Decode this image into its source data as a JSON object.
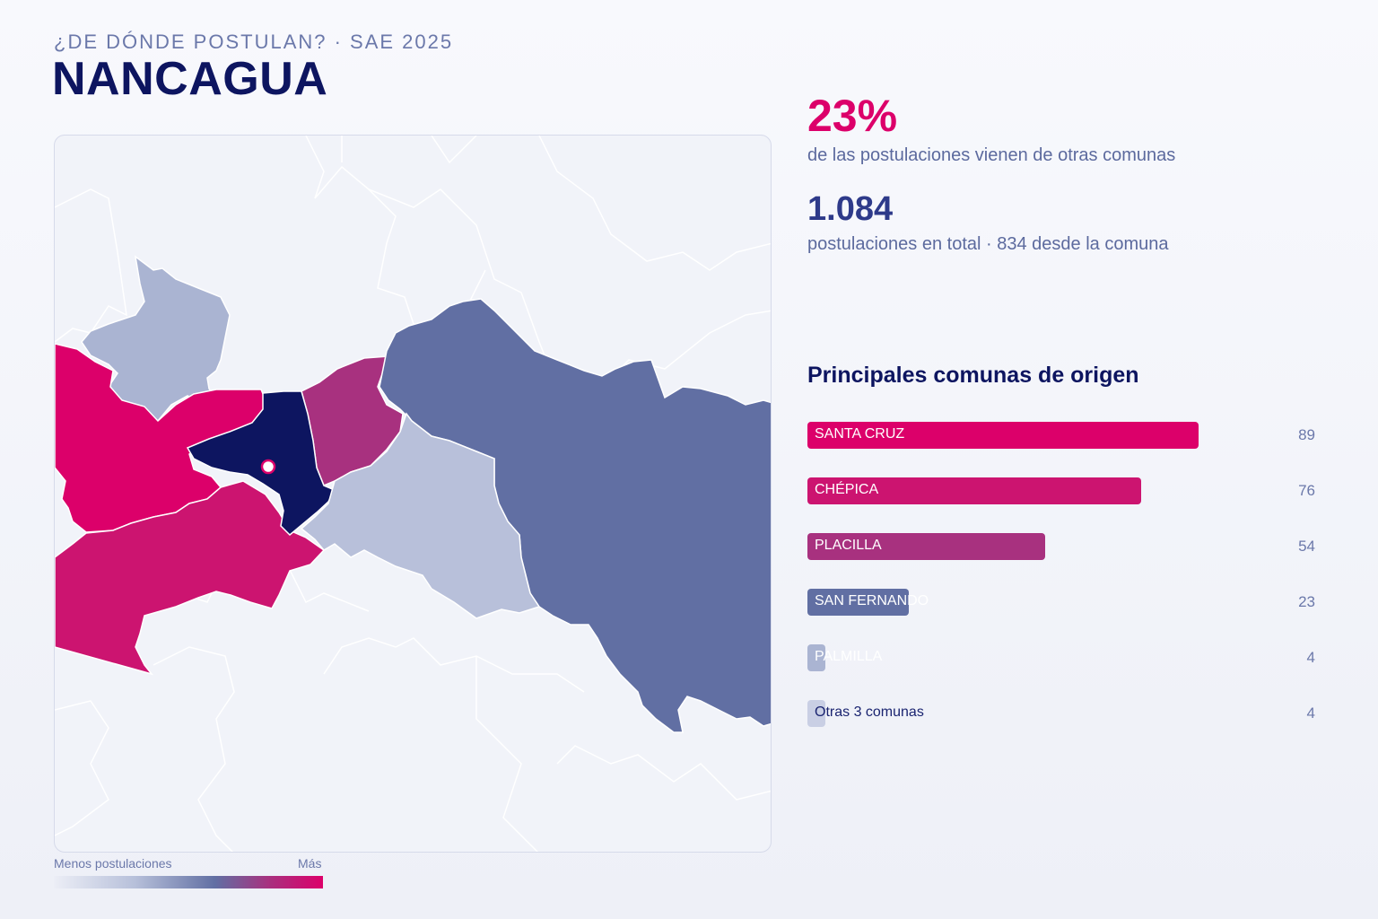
{
  "header": {
    "eyebrow": "¿DE DÓNDE POSTULAN? · SAE 2025",
    "title": "NANCAGUA"
  },
  "stats": {
    "external_pct": "23%",
    "external_caption": "de las postulaciones vienen de otras comunas",
    "total": "1.084",
    "total_caption": "postulaciones en total · 834 desde la comuna"
  },
  "origins": {
    "title": "Principales comunas de origen",
    "max_value": 89,
    "items": [
      {
        "label": "SANTA CRUZ",
        "value": 89,
        "color": "#dc006a",
        "dark_label": false
      },
      {
        "label": "CHÉPICA",
        "value": 76,
        "color": "#cc1470",
        "dark_label": false
      },
      {
        "label": "PLACILLA",
        "value": 54,
        "color": "#a8317f",
        "dark_label": false
      },
      {
        "label": "SAN FERNANDO",
        "value": 23,
        "color": "#616fa3",
        "dark_label": false
      },
      {
        "label": "PALMILLA",
        "value": 4,
        "color": "#aab4d2",
        "dark_label": false
      },
      {
        "label": "Otras 3 comunas",
        "value": 4,
        "color": "#c9cfe4",
        "dark_label": true
      }
    ]
  },
  "legend": {
    "min_label": "Menos postulaciones",
    "max_label": "Más"
  },
  "map": {
    "colors": {
      "home": "#0d1560",
      "santa_cruz": "#dc006a",
      "chepica": "#cc1470",
      "placilla": "#a8317f",
      "san_fernando": "#616fa3",
      "palmilla": "#aab4d2",
      "other": "#b8c0da",
      "background_region": "#f1f3f9",
      "marker": "#dc006a"
    }
  }
}
